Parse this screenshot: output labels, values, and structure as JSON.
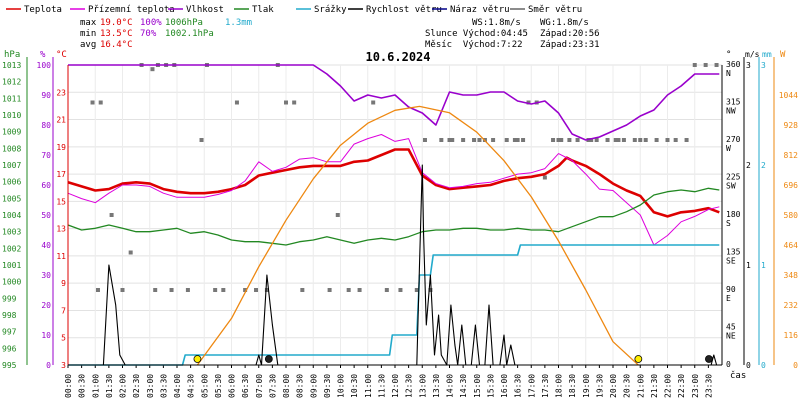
{
  "chart_data": {
    "type": "line",
    "title": "10.6.2024",
    "legend": [
      {
        "label": "Teplota",
        "color": "#dd0000"
      },
      {
        "label": "Přízemní teplota",
        "color": "#dd00dd"
      },
      {
        "label": "Vlhkost",
        "color": "#9900cc"
      },
      {
        "label": "Tlak",
        "color": "#228822"
      },
      {
        "label": "Srážky",
        "color": "#22aacc"
      },
      {
        "label": "Rychlost větru",
        "color": "#000000"
      },
      {
        "label": "Náraz větru",
        "color": "#000088"
      },
      {
        "label": "Směr větru",
        "color": "#666666"
      }
    ],
    "stats": {
      "max_label": "max",
      "min_label": "min",
      "avg_label": "avg",
      "max_temp": "19.0°C",
      "max_hum": "100%",
      "max_press": "1006hPa",
      "max_rain": "1.3mm",
      "min_temp": "13.5°C",
      "min_hum": "70%",
      "min_press": "1002.1hPa",
      "avg_temp": "16.4°C",
      "ws": "WS:1.8m/s",
      "wg": "WG:1.8m/s",
      "sun_rise": "Slunce Východ:04:45",
      "sun_set": "Západ:20:56",
      "moon_rise": "Měsíc  Východ:7:22",
      "moon_set": "Západ:23:31"
    },
    "axis_titles": {
      "hpa": "hPa",
      "pct": "%",
      "degc": "°C",
      "deg": "°",
      "ms": "m/s",
      "mm": "mm",
      "w": "W",
      "time": "čas"
    },
    "axes": {
      "pressure": {
        "ticks": [
          "995",
          "996",
          "997",
          "998",
          "999",
          "1000",
          "1001",
          "1002",
          "1003",
          "1004",
          "1005",
          "1006",
          "1007",
          "1008",
          "1009",
          "1010",
          "1011",
          "1012",
          "1013"
        ],
        "range": [
          995,
          1013
        ]
      },
      "humidity": {
        "ticks": [
          "0",
          "10",
          "20",
          "30",
          "40",
          "50",
          "60",
          "70",
          "80",
          "90",
          "100"
        ],
        "range": [
          0,
          100
        ]
      },
      "temperature": {
        "ticks": [
          "3",
          "5",
          "7",
          "9",
          "11",
          "13",
          "15",
          "17",
          "19",
          "21",
          "23"
        ],
        "range": [
          3,
          25
        ]
      },
      "wind_dir": {
        "ticks": [
          "0",
          "45\nNE",
          "90\nE",
          "135\nSE",
          "180\nS",
          "225\nSW",
          "270\nW",
          "315\nNW",
          "360\nN"
        ],
        "range": [
          0,
          360
        ]
      },
      "wind_speed": {
        "ticks": [
          "0",
          "1",
          "2",
          "3"
        ],
        "range": [
          0,
          3
        ]
      },
      "rain": {
        "ticks": [
          "0",
          "1",
          "2",
          "3"
        ],
        "range": [
          0,
          3
        ]
      },
      "solar": {
        "ticks": [
          "0",
          "116",
          "232",
          "348",
          "464",
          "580",
          "696",
          "812",
          "928",
          "1044"
        ],
        "range": [
          0,
          1160
        ]
      },
      "x_ticks": [
        "00:00",
        "00:30",
        "01:00",
        "01:30",
        "02:00",
        "02:30",
        "03:00",
        "03:30",
        "04:00",
        "04:30",
        "05:00",
        "05:30",
        "06:00",
        "06:30",
        "07:00",
        "07:30",
        "08:00",
        "08:30",
        "09:00",
        "09:30",
        "10:00",
        "10:30",
        "11:00",
        "11:30",
        "12:00",
        "12:30",
        "13:00",
        "13:30",
        "14:00",
        "14:30",
        "15:00",
        "15:30",
        "16:00",
        "16:30",
        "17:00",
        "17:30",
        "18:00",
        "18:30",
        "19:00",
        "19:30",
        "20:00",
        "20:30",
        "21:00",
        "21:30",
        "22:00",
        "22:30",
        "23:00",
        "23:30"
      ],
      "x_range_hours": [
        0,
        24
      ]
    },
    "series": [
      {
        "name": "Teplota",
        "color": "#dd0000",
        "axis": "temperature",
        "width": 2.6,
        "x": [
          0,
          0.5,
          1,
          1.5,
          2,
          2.5,
          3,
          3.5,
          4,
          4.5,
          5,
          5.5,
          6,
          6.5,
          7,
          7.5,
          8,
          8.5,
          9,
          9.5,
          10,
          10.5,
          11,
          11.5,
          12,
          12.5,
          13,
          13.5,
          14,
          14.5,
          15,
          15.5,
          16,
          16.5,
          17,
          17.5,
          18,
          18.3,
          18.5,
          19,
          19.5,
          20,
          20.5,
          21,
          21.5,
          22,
          22.5,
          23,
          23.5,
          23.9
        ],
        "y": [
          16.4,
          16.1,
          15.8,
          15.9,
          16.3,
          16.4,
          16.3,
          15.9,
          15.7,
          15.6,
          15.6,
          15.7,
          15.9,
          16.2,
          16.9,
          17.1,
          17.3,
          17.5,
          17.6,
          17.6,
          17.6,
          17.9,
          18.0,
          18.4,
          18.8,
          18.8,
          16.9,
          16.2,
          15.9,
          16.0,
          16.1,
          16.2,
          16.5,
          16.7,
          16.8,
          17.0,
          17.6,
          18.2,
          18.0,
          17.6,
          17.0,
          16.3,
          15.8,
          15.4,
          14.2,
          13.9,
          14.2,
          14.3,
          14.5,
          14.2
        ]
      },
      {
        "name": "Přízemní teplota",
        "color": "#dd00dd",
        "axis": "temperature",
        "width": 1,
        "x": [
          0,
          0.5,
          1,
          1.5,
          2,
          2.5,
          3,
          3.5,
          4,
          4.5,
          5,
          5.5,
          6,
          6.5,
          7,
          7.5,
          8,
          8.5,
          9,
          9.5,
          10,
          10.5,
          11,
          11.5,
          12,
          12.5,
          13,
          13.5,
          14,
          14.5,
          15,
          15.5,
          16,
          16.5,
          17,
          17.5,
          18,
          18.5,
          19,
          19.5,
          20,
          20.5,
          21,
          21.5,
          22,
          22.5,
          23,
          23.5,
          23.9
        ],
        "y": [
          15.6,
          15.2,
          14.9,
          15.6,
          16.2,
          16.2,
          16.1,
          15.6,
          15.3,
          15.3,
          15.3,
          15.5,
          15.8,
          16.5,
          17.9,
          17.2,
          17.5,
          18.1,
          18.2,
          17.9,
          17.9,
          19.2,
          19.6,
          19.9,
          19.4,
          19.6,
          17.1,
          16.3,
          16.0,
          16.1,
          16.3,
          16.4,
          16.7,
          17.0,
          17.1,
          17.4,
          18.5,
          18.0,
          17.0,
          15.9,
          15.8,
          14.9,
          14.0,
          11.8,
          12.5,
          13.5,
          13.9,
          14.4,
          14.6
        ]
      },
      {
        "name": "Vlhkost",
        "color": "#9900cc",
        "axis": "humidity",
        "width": 1.6,
        "x": [
          0,
          0.5,
          1,
          1.5,
          2,
          2.5,
          3,
          3.5,
          4,
          4.5,
          5,
          5.5,
          6,
          6.5,
          7,
          7.5,
          8,
          8.5,
          9,
          9.5,
          10,
          10.5,
          11,
          11.5,
          12,
          12.5,
          13,
          13.5,
          14,
          14.5,
          15,
          15.5,
          16,
          16.5,
          17,
          17.5,
          18,
          18.5,
          19,
          19.5,
          20,
          20.5,
          21,
          21.5,
          22,
          22.5,
          23,
          23.5,
          23.9
        ],
        "y": [
          100,
          100,
          100,
          100,
          100,
          100,
          100,
          100,
          100,
          100,
          100,
          100,
          100,
          100,
          100,
          100,
          100,
          100,
          100,
          97,
          93,
          88,
          90,
          89,
          90,
          86,
          84,
          80,
          91,
          90,
          90,
          91,
          91,
          88,
          87,
          88,
          84,
          77,
          75,
          76,
          78,
          80,
          83,
          85,
          90,
          93,
          97,
          97,
          97
        ]
      },
      {
        "name": "Tlak",
        "color": "#228822",
        "axis": "pressure",
        "width": 1.3,
        "x": [
          0,
          0.5,
          1,
          1.5,
          2,
          2.5,
          3,
          3.5,
          4,
          4.5,
          5,
          5.5,
          6,
          6.5,
          7,
          7.5,
          8,
          8.5,
          9,
          9.5,
          10,
          10.5,
          11,
          11.5,
          12,
          12.5,
          13,
          13.5,
          14,
          14.5,
          15,
          15.5,
          16,
          16.5,
          17,
          17.5,
          18,
          18.5,
          19,
          19.5,
          20,
          20.5,
          21,
          21.5,
          22,
          22.5,
          23,
          23.5,
          23.9
        ],
        "y": [
          1003.4,
          1003.1,
          1003.2,
          1003.4,
          1003.2,
          1003.0,
          1003.0,
          1003.1,
          1003.2,
          1002.9,
          1003.0,
          1002.8,
          1002.5,
          1002.4,
          1002.4,
          1002.3,
          1002.2,
          1002.4,
          1002.5,
          1002.7,
          1002.5,
          1002.3,
          1002.5,
          1002.6,
          1002.5,
          1002.7,
          1003.0,
          1003.1,
          1003.1,
          1003.2,
          1003.2,
          1003.1,
          1003.1,
          1003.2,
          1003.1,
          1003.1,
          1003.0,
          1003.3,
          1003.6,
          1003.9,
          1003.9,
          1004.2,
          1004.6,
          1005.2,
          1005.4,
          1005.5,
          1005.4,
          1005.6,
          1005.5
        ]
      },
      {
        "name": "Srážky",
        "color": "#22aacc",
        "axis": "rain",
        "width": 1.6,
        "x": [
          0,
          4.2,
          4.3,
          11.8,
          11.9,
          12.8,
          12.9,
          13.3,
          13.4,
          16.5,
          16.6,
          23.9
        ],
        "y": [
          0,
          0,
          0.1,
          0.1,
          0.3,
          0.3,
          0.9,
          0.9,
          1.1,
          1.1,
          1.2,
          1.2
        ]
      },
      {
        "name": "Slunce",
        "color": "#ee8811",
        "axis": "solar",
        "width": 1.3,
        "x": [
          4.75,
          6,
          7,
          8,
          9,
          10,
          11,
          12,
          12.9,
          14,
          15,
          16,
          17,
          18,
          19,
          20,
          20.93
        ],
        "y": [
          0,
          180,
          380,
          560,
          720,
          850,
          935,
          985,
          1000,
          975,
          900,
          790,
          650,
          480,
          290,
          90,
          0
        ]
      },
      {
        "name": "Rychlost větru",
        "color": "#000000",
        "axis": "wind_speed",
        "width": 1.1,
        "x": [
          0,
          1.3,
          1.5,
          1.75,
          1.9,
          2.1,
          6.9,
          7.0,
          7.1,
          7.3,
          7.5,
          7.7,
          12.8,
          12.9,
          13.0,
          13.05,
          13.15,
          13.3,
          13.45,
          13.6,
          13.7,
          13.9,
          14.05,
          14.2,
          14.3,
          14.45,
          14.6,
          14.8,
          14.95,
          15.1,
          15.3,
          15.45,
          15.6,
          15.7,
          15.85,
          16.0,
          16.1,
          16.25,
          16.4,
          16.6,
          23.6,
          23.7,
          23.8
        ],
        "y": [
          0,
          0,
          1.0,
          0.6,
          0.1,
          0,
          0,
          0.1,
          0,
          0.9,
          0.4,
          0,
          0,
          1.0,
          2.0,
          1.3,
          0.4,
          0.9,
          0.1,
          0.5,
          0.1,
          0,
          0.6,
          0.2,
          0,
          0.4,
          0,
          0,
          0.4,
          0,
          0,
          0.6,
          0,
          0,
          0,
          0.3,
          0,
          0.2,
          0,
          0,
          0,
          0.1,
          0
        ]
      }
    ],
    "wind_dir_points": {
      "x": [
        1.1,
        1.2,
        2.0,
        0.9,
        1.6,
        3.1,
        2.7,
        3.3,
        3.6,
        3.8,
        4.9,
        5.1,
        5.4,
        5.7,
        6.2,
        6.5,
        6.9,
        7.3,
        7.7,
        8.0,
        8.6,
        9.6,
        10.3,
        10.7,
        11.2,
        11.7,
        12.2,
        12.8,
        13.3,
        13.7,
        14.1,
        14.5,
        14.9,
        15.1,
        15.6,
        16.1,
        16.4,
        16.7,
        16.9,
        17.2,
        17.8,
        18.1,
        18.4,
        18.7,
        19.1,
        19.4,
        19.8,
        20.1,
        20.4,
        20.8,
        21.2,
        21.6,
        22.0,
        22.3,
        22.7,
        23.0,
        23.4,
        23.8,
        3.2,
        3.9,
        4.4,
        2.3,
        8.3,
        9.9,
        13.1,
        14.0,
        15.3,
        16.5,
        17.5,
        18.0,
        19.2,
        20.2,
        21.0
      ],
      "y": [
        90,
        315,
        90,
        315,
        180,
        355,
        360,
        360,
        360,
        90,
        270,
        360,
        90,
        90,
        315,
        90,
        90,
        90,
        360,
        315,
        90,
        90,
        90,
        90,
        315,
        90,
        90,
        90,
        90,
        270,
        270,
        270,
        270,
        270,
        270,
        270,
        270,
        270,
        315,
        315,
        270,
        270,
        270,
        270,
        270,
        270,
        270,
        270,
        270,
        270,
        270,
        270,
        270,
        270,
        270,
        360,
        360,
        360,
        90,
        360,
        90,
        135,
        315,
        180,
        270,
        270,
        270,
        270,
        225,
        270,
        270,
        270,
        270
      ]
    },
    "markers": {
      "sunrise_hour": 4.75,
      "sunset_hour": 20.93,
      "moonrise_hour": 7.37,
      "moonset_hour": 23.52
    }
  }
}
